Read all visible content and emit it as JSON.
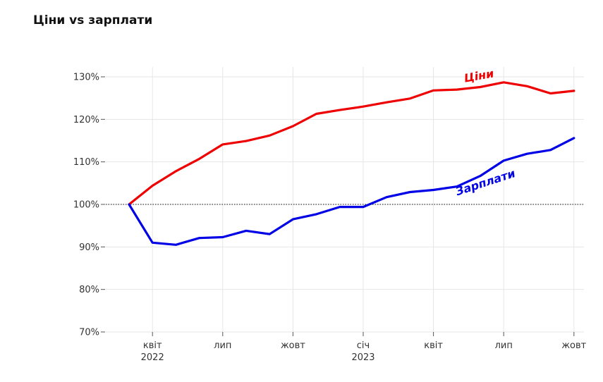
{
  "title": "Ціни vs зарплати",
  "chart_data": {
    "type": "line",
    "title": "Ціни vs зарплати",
    "ylim": [
      70,
      130
    ],
    "y_ticks": [
      70,
      80,
      90,
      100,
      110,
      120,
      130
    ],
    "y_tick_labels": [
      "70%",
      "80%",
      "90%",
      "100%",
      "110%",
      "120%",
      "130%"
    ],
    "x_ticks": [
      {
        "date": "2022-04",
        "label": "квіт",
        "year": "2022"
      },
      {
        "date": "2022-07",
        "label": "лип",
        "year": ""
      },
      {
        "date": "2022-10",
        "label": "жовт",
        "year": ""
      },
      {
        "date": "2023-01",
        "label": "січ",
        "year": "2023"
      },
      {
        "date": "2023-04",
        "label": "квіт",
        "year": ""
      },
      {
        "date": "2023-07",
        "label": "лип",
        "year": ""
      },
      {
        "date": "2023-10",
        "label": "жовт",
        "year": ""
      }
    ],
    "x": [
      "2022-03",
      "2022-04",
      "2022-05",
      "2022-06",
      "2022-07",
      "2022-08",
      "2022-09",
      "2022-10",
      "2022-11",
      "2022-12",
      "2023-01",
      "2023-02",
      "2023-03",
      "2023-04",
      "2023-05",
      "2023-06",
      "2023-07",
      "2023-08",
      "2023-09",
      "2023-10"
    ],
    "reference_line": 100,
    "grid": true,
    "series": [
      {
        "name": "Ціни",
        "color": "#ee0000",
        "values": [
          100,
          104.4,
          107.8,
          110.7,
          114.1,
          114.9,
          116.2,
          118.4,
          121.3,
          122.2,
          123.0,
          124.0,
          124.9,
          126.8,
          127.0,
          127.6,
          128.7,
          127.8,
          126.1,
          126.7
        ]
      },
      {
        "name": "Зарплати",
        "color": "#0000e6",
        "values": [
          100,
          91.0,
          90.5,
          92.1,
          92.3,
          93.8,
          93.0,
          96.5,
          97.7,
          99.4,
          99.4,
          101.7,
          102.9,
          103.4,
          104.2,
          106.7,
          110.3,
          111.9,
          112.8,
          115.6
        ]
      }
    ]
  }
}
